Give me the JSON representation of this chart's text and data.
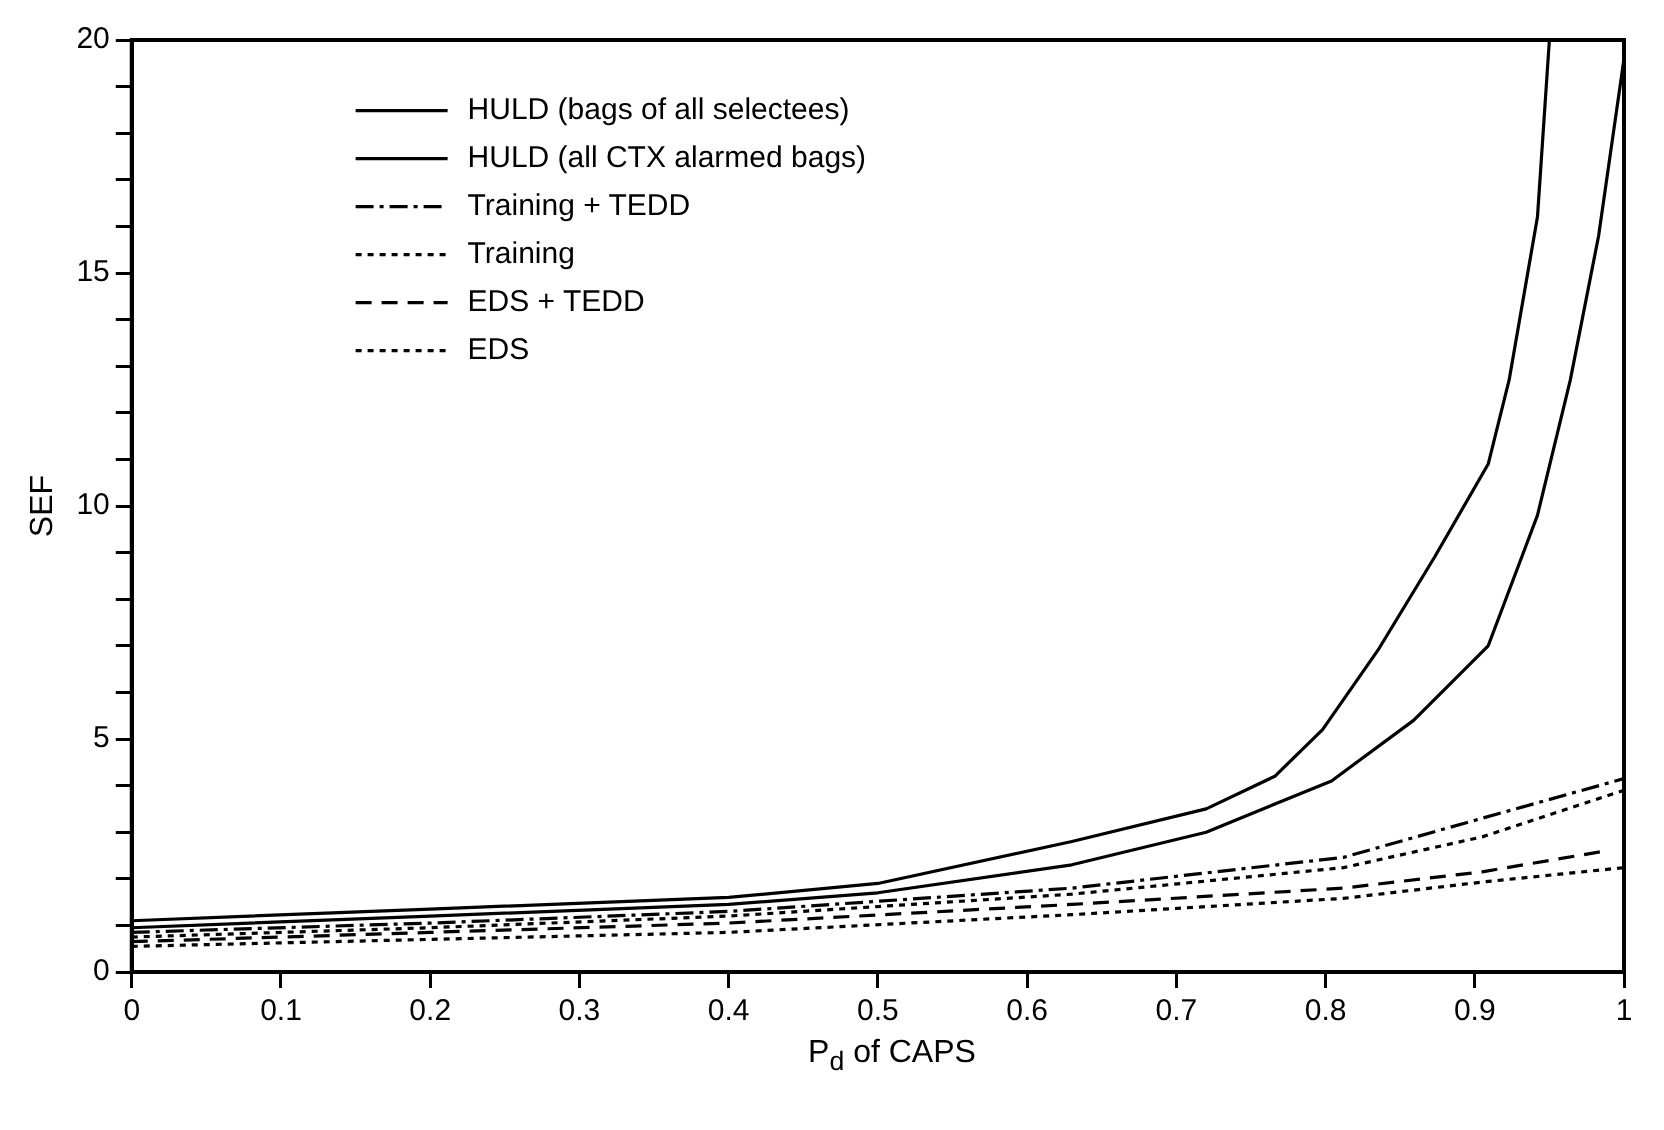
{
  "chart_data": {
    "type": "line",
    "xlabel": "P$_{d}$ of CAPS",
    "ylabel": "SEF",
    "xlim": [
      0,
      1
    ],
    "xticks": [
      0,
      0.1,
      0.2,
      0.3,
      0.4,
      0.5,
      0.6,
      0.7,
      0.8,
      0.9,
      1
    ],
    "ylim": [
      0,
      20
    ],
    "yticks": [
      0,
      {
        "value": 1,
        "label": null
      },
      {
        "value": 2,
        "label": null
      },
      {
        "value": 3,
        "label": null
      },
      {
        "value": 4,
        "label": null
      },
      5,
      {
        "value": 6,
        "label": null
      },
      {
        "value": 7,
        "label": null
      },
      {
        "value": 8,
        "label": null
      },
      {
        "value": 9,
        "label": null
      },
      10,
      {
        "value": 11,
        "label": null
      },
      {
        "value": 12,
        "label": null
      },
      {
        "value": 13,
        "label": null
      },
      {
        "value": 14,
        "label": null
      },
      15,
      {
        "value": 16,
        "label": null
      },
      {
        "value": 17,
        "label": null
      },
      {
        "value": 18,
        "label": null
      },
      {
        "value": 19,
        "label": null
      },
      20
    ],
    "grid": false,
    "legend": "top left",
    "marker": "none",
    "series": [
      {
        "name": "HULD (bags of all selectees)",
        "color": "#000000",
        "line_style": "solid",
        "x": [
          0,
          0.2,
          0.4,
          0.5,
          0.63,
          0.72,
          0.766,
          0.798,
          0.835,
          0.873,
          0.909,
          0.923,
          0.942,
          0.95
        ],
        "values": [
          1.1,
          1.35,
          1.6,
          1.9,
          2.8,
          3.5,
          4.2,
          5.2,
          6.9,
          8.9,
          10.9,
          12.7,
          16.2,
          20
        ]
      },
      {
        "name": "HULD (all CTX alarmed bags)",
        "color": "#000000",
        "line_style": "solid",
        "x": [
          0,
          0.2,
          0.4,
          0.5,
          0.63,
          0.72,
          0.804,
          0.859,
          0.909,
          0.942,
          0.964,
          0.983,
          1.0
        ],
        "values": [
          0.95,
          1.2,
          1.45,
          1.7,
          2.3,
          3.0,
          4.1,
          5.4,
          7.0,
          9.8,
          12.7,
          15.8,
          19.6
        ]
      },
      {
        "name": "Training + TEDD",
        "color": "#000000",
        "line_style": "dashdot",
        "x": [
          0,
          0.2,
          0.4,
          0.63,
          0.812,
          0.905,
          1.0
        ],
        "values": [
          0.85,
          1.05,
          1.3,
          1.8,
          2.46,
          3.3,
          4.15
        ]
      },
      {
        "name": "Training",
        "color": "#000000",
        "line_style": "dotted",
        "x": [
          0,
          0.2,
          0.4,
          0.63,
          0.812,
          0.905,
          1.0
        ],
        "values": [
          0.75,
          0.95,
          1.2,
          1.67,
          2.24,
          2.9,
          3.9
        ]
      },
      {
        "name": "EDS + TEDD",
        "color": "#000000",
        "line_style": "dashed",
        "x": [
          0,
          0.2,
          0.4,
          0.63,
          0.812,
          0.905,
          0.988
        ],
        "values": [
          0.65,
          0.85,
          1.05,
          1.45,
          1.8,
          2.15,
          2.6
        ]
      },
      {
        "name": "EDS",
        "color": "#000000",
        "line_style": "dotted",
        "x": [
          0,
          0.2,
          0.4,
          0.63,
          0.812,
          0.905,
          1.0
        ],
        "values": [
          0.55,
          0.7,
          0.85,
          1.23,
          1.58,
          1.93,
          2.24
        ]
      }
    ]
  }
}
